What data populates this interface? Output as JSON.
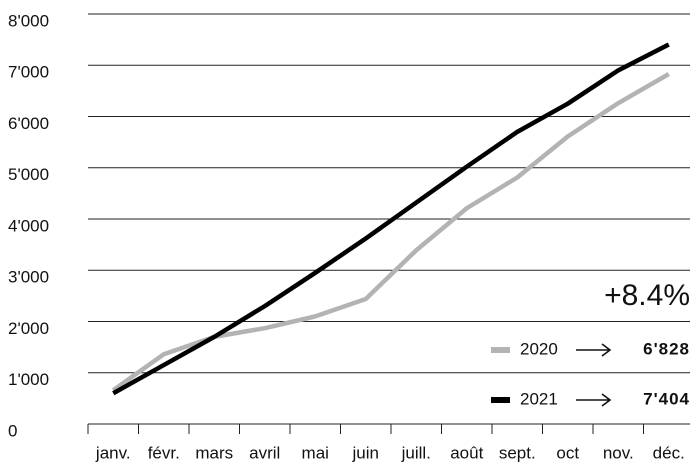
{
  "chart_data": {
    "type": "line",
    "categories": [
      "janv.",
      "févr.",
      "mars",
      "avril",
      "mai",
      "juin",
      "juill.",
      "août",
      "sept.",
      "oct",
      "nov.",
      "déc."
    ],
    "series": [
      {
        "name": "2020",
        "color": "#b3b3b3",
        "values": [
          660,
          1360,
          1700,
          1870,
          2100,
          2440,
          3390,
          4210,
          4810,
          5610,
          6260,
          6828
        ],
        "value_labels": [
          null,
          null,
          null,
          null,
          null,
          null,
          null,
          null,
          null,
          null,
          null,
          "6'828"
        ]
      },
      {
        "name": "2021",
        "color": "#000000",
        "values": [
          600,
          1150,
          1700,
          2300,
          2950,
          3620,
          4320,
          5020,
          5700,
          6250,
          6900,
          7404
        ],
        "value_labels": [
          null,
          null,
          null,
          null,
          null,
          null,
          null,
          null,
          null,
          null,
          null,
          "7'404"
        ]
      }
    ],
    "annotation": "+8.4%",
    "ylim": [
      0,
      8000
    ],
    "yticks": [
      0,
      {
        "value": 1000,
        "label": "1'000"
      },
      {
        "value": 2000,
        "label": "2'000"
      },
      {
        "value": 3000,
        "label": "3'000"
      },
      {
        "value": 4000,
        "label": "4'000"
      },
      {
        "value": 5000,
        "label": "5'000"
      },
      {
        "value": 6000,
        "label": "6'000"
      },
      {
        "value": 7000,
        "label": "7'000"
      },
      {
        "value": 8000,
        "label": "8'000"
      }
    ],
    "grid": true
  }
}
